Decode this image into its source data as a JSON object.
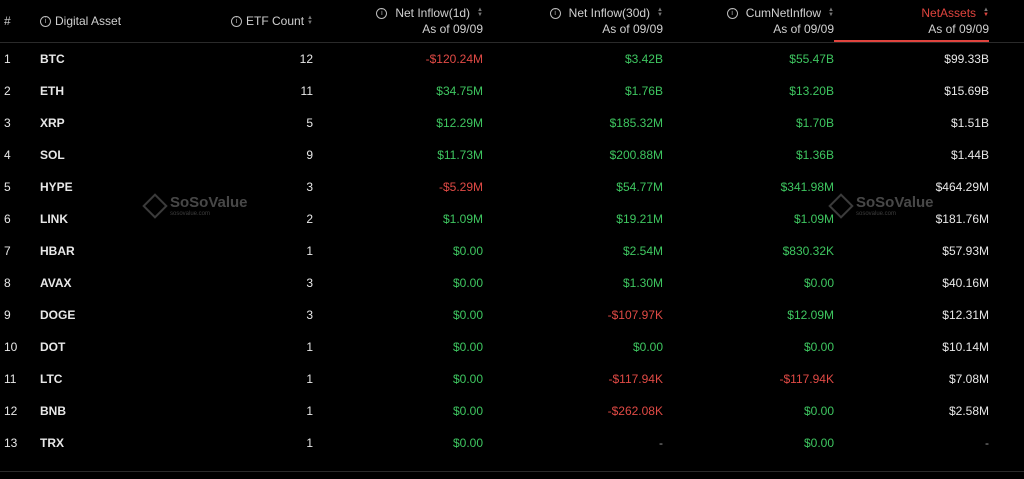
{
  "header": {
    "idx": "#",
    "asset": "Digital Asset",
    "etf_count": "ETF Count",
    "net_inflow_1d": "Net Inflow(1d)",
    "net_inflow_30d": "Net Inflow(30d)",
    "cum_net_inflow": "CumNetInflow",
    "net_assets": "NetAssets",
    "as_of": "As of 09/09",
    "info_icon": "i"
  },
  "watermark": {
    "name": "SoSoValue",
    "url": "sosovalue.com"
  },
  "colors": {
    "positive": "#3ec660",
    "negative": "#e04a45",
    "accent": "#e0443e",
    "background": "#000000"
  },
  "rows": [
    {
      "idx": "1",
      "asset": "BTC",
      "etf": "12",
      "n1": "-$120.24M",
      "n1c": "neg",
      "n30": "$3.42B",
      "n30c": "pos",
      "cum": "$55.47B",
      "cumc": "pos",
      "na": "$99.33B"
    },
    {
      "idx": "2",
      "asset": "ETH",
      "etf": "11",
      "n1": "$34.75M",
      "n1c": "pos",
      "n30": "$1.76B",
      "n30c": "pos",
      "cum": "$13.20B",
      "cumc": "pos",
      "na": "$15.69B"
    },
    {
      "idx": "3",
      "asset": "XRP",
      "etf": "5",
      "n1": "$12.29M",
      "n1c": "pos",
      "n30": "$185.32M",
      "n30c": "pos",
      "cum": "$1.70B",
      "cumc": "pos",
      "na": "$1.51B"
    },
    {
      "idx": "4",
      "asset": "SOL",
      "etf": "9",
      "n1": "$11.73M",
      "n1c": "pos",
      "n30": "$200.88M",
      "n30c": "pos",
      "cum": "$1.36B",
      "cumc": "pos",
      "na": "$1.44B"
    },
    {
      "idx": "5",
      "asset": "HYPE",
      "etf": "3",
      "n1": "-$5.29M",
      "n1c": "neg",
      "n30": "$54.77M",
      "n30c": "pos",
      "cum": "$341.98M",
      "cumc": "pos",
      "na": "$464.29M"
    },
    {
      "idx": "6",
      "asset": "LINK",
      "etf": "2",
      "n1": "$1.09M",
      "n1c": "pos",
      "n30": "$19.21M",
      "n30c": "pos",
      "cum": "$1.09M",
      "cumc": "pos",
      "na": "$181.76M"
    },
    {
      "idx": "7",
      "asset": "HBAR",
      "etf": "1",
      "n1": "$0.00",
      "n1c": "neu",
      "n30": "$2.54M",
      "n30c": "pos",
      "cum": "$830.32K",
      "cumc": "pos",
      "na": "$57.93M"
    },
    {
      "idx": "8",
      "asset": "AVAX",
      "etf": "3",
      "n1": "$0.00",
      "n1c": "neu",
      "n30": "$1.30M",
      "n30c": "pos",
      "cum": "$0.00",
      "cumc": "neu",
      "na": "$40.16M"
    },
    {
      "idx": "9",
      "asset": "DOGE",
      "etf": "3",
      "n1": "$0.00",
      "n1c": "neu",
      "n30": "-$107.97K",
      "n30c": "neg",
      "cum": "$12.09M",
      "cumc": "pos",
      "na": "$12.31M"
    },
    {
      "idx": "10",
      "asset": "DOT",
      "etf": "1",
      "n1": "$0.00",
      "n1c": "neu",
      "n30": "$0.00",
      "n30c": "neu",
      "cum": "$0.00",
      "cumc": "neu",
      "na": "$10.14M"
    },
    {
      "idx": "11",
      "asset": "LTC",
      "etf": "1",
      "n1": "$0.00",
      "n1c": "neu",
      "n30": "-$117.94K",
      "n30c": "neg",
      "cum": "-$117.94K",
      "cumc": "neg",
      "na": "$7.08M"
    },
    {
      "idx": "12",
      "asset": "BNB",
      "etf": "1",
      "n1": "$0.00",
      "n1c": "neu",
      "n30": "-$262.08K",
      "n30c": "neg",
      "cum": "$0.00",
      "cumc": "neu",
      "na": "$2.58M"
    },
    {
      "idx": "13",
      "asset": "TRX",
      "etf": "1",
      "n1": "$0.00",
      "n1c": "neu",
      "n30": "-",
      "n30c": "dash",
      "cum": "$0.00",
      "cumc": "neu",
      "na": "-"
    }
  ]
}
